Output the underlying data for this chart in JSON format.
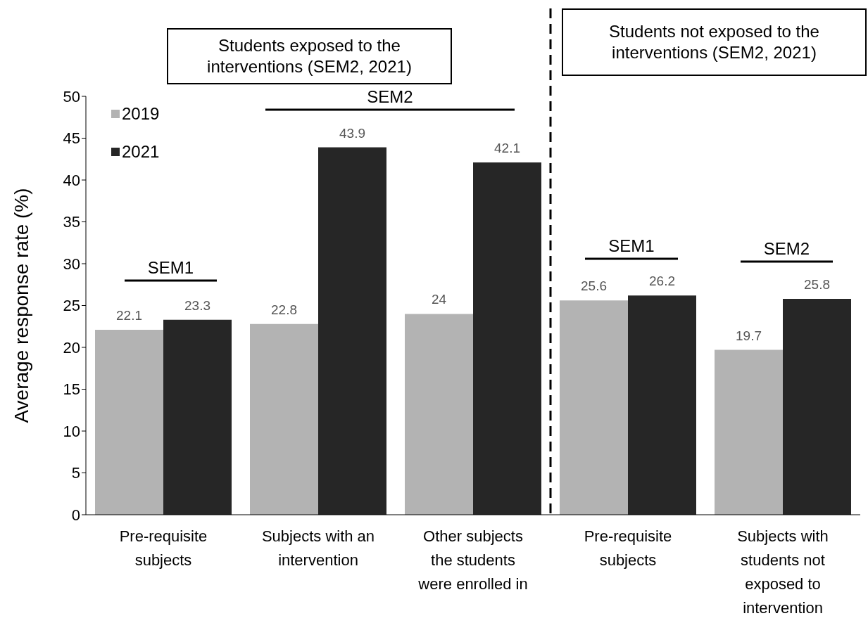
{
  "chart_data": {
    "type": "bar",
    "ylabel": "Average response rate (%)",
    "categories": [
      "Pre-requisite subjects",
      "Subjects with an intervention",
      "Other subjects the students were enrolled in",
      "Pre-requisite subjects",
      "Subjects with students not exposed to intervention"
    ],
    "series": [
      {
        "name": "2019",
        "color": "#b3b3b3",
        "values": [
          22.1,
          22.8,
          24,
          25.6,
          19.7
        ]
      },
      {
        "name": "2021",
        "color": "#262626",
        "values": [
          23.3,
          43.9,
          42.1,
          26.2,
          25.8
        ]
      }
    ],
    "ylim": [
      0,
      50
    ],
    "yticks": [
      0,
      5,
      10,
      15,
      20,
      25,
      30,
      35,
      40,
      45,
      50
    ],
    "legend": "top left",
    "data_labels": true,
    "annotations": [
      "Students exposed to the interventions (SEM2, 2021)",
      "Students not exposed to the interventions (SEM2, 2021)",
      "SEM2",
      "SEM1",
      "SEM1",
      "SEM2"
    ]
  }
}
